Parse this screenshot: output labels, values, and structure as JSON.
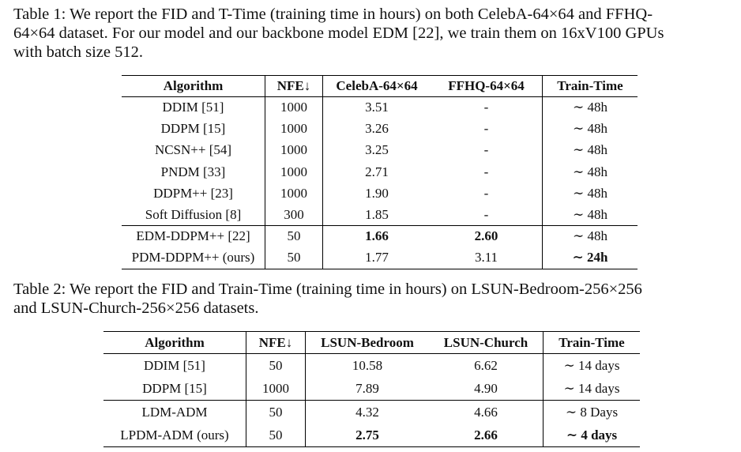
{
  "table1": {
    "caption_lines": [
      "Table 1: We report the FID and T-Time (training time in hours) on both CelebA-64×64 and FFHQ-",
      "64×64 dataset. For our model and our backbone model EDM [22], we train them on 16xV100 GPUs",
      "with batch size 512."
    ],
    "headers": [
      "Algorithm",
      "NFE↓",
      "CelebA-64×64",
      "FFHQ-64×64",
      "Train-Time"
    ],
    "rows": [
      [
        "DDIM [51]",
        "1000",
        "3.51",
        "-",
        "∼ 48h"
      ],
      [
        "DDPM [15]",
        "1000",
        "3.26",
        "-",
        "∼ 48h"
      ],
      [
        "NCSN++ [54]",
        "1000",
        "3.25",
        "-",
        "∼ 48h"
      ],
      [
        "PNDM [33]",
        "1000",
        "2.71",
        "-",
        "∼ 48h"
      ],
      [
        "DDPM++ [23]",
        "1000",
        "1.90",
        "-",
        "∼ 48h"
      ],
      [
        "Soft Diffusion [8]",
        "300",
        "1.85",
        "-",
        "∼ 48h"
      ],
      [
        "EDM-DDPM++ [22]",
        "50",
        "1.66",
        "2.60",
        "∼ 48h"
      ],
      [
        "PDM-DDPM++ (ours)",
        "50",
        "1.77",
        "3.11",
        "∼ 24h"
      ]
    ]
  },
  "table2": {
    "caption_lines": [
      "Table 2: We report the FID and Train-Time (training time in hours) on LSUN-Bedroom-256×256",
      "and LSUN-Church-256×256 datasets."
    ],
    "headers": [
      "Algorithm",
      "NFE↓",
      "LSUN-Bedroom",
      "LSUN-Church",
      "Train-Time"
    ],
    "rows": [
      [
        "DDIM [51]",
        "50",
        "10.58",
        "6.62",
        "∼ 14 days"
      ],
      [
        "DDPM [15]",
        "1000",
        "7.89",
        "4.90",
        "∼ 14 days"
      ],
      [
        "LDM-ADM",
        "50",
        "4.32",
        "4.66",
        "∼ 8 Days"
      ],
      [
        "LPDM-ADM (ours)",
        "50",
        "2.75",
        "2.66",
        "∼ 4 days"
      ]
    ]
  }
}
